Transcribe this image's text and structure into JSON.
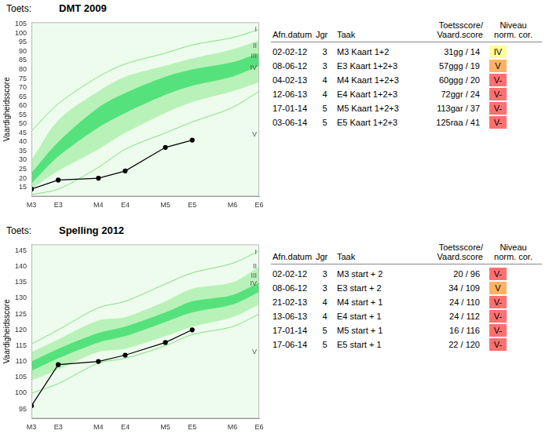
{
  "chart_data": [
    {
      "type": "line",
      "heading": "Toets:",
      "title": "DMT 2009",
      "y_label": "Vaardigheidsscore",
      "x": [
        3,
        3.4,
        4,
        4.4,
        5,
        5.4,
        6,
        6.4
      ],
      "xlim": [
        3,
        6.4
      ],
      "xticks": [
        {
          "value": 3,
          "label": "M3"
        },
        {
          "value": 3.4,
          "label": "E3"
        },
        {
          "value": 4,
          "label": "M4"
        },
        {
          "value": 4.4,
          "label": "E4"
        },
        {
          "value": 5,
          "label": "M5"
        },
        {
          "value": 5.4,
          "label": "E5"
        },
        {
          "value": 6,
          "label": "M6"
        },
        {
          "value": 6.4,
          "label": "E6"
        }
      ],
      "ylim": [
        10,
        106
      ],
      "yticks": [
        15,
        20,
        25,
        30,
        35,
        40,
        45,
        50,
        55,
        60,
        65,
        70,
        75,
        80,
        85,
        90,
        95,
        100,
        105
      ],
      "grid": false,
      "series": [
        {
          "type": "band",
          "color": "#b8f2b8",
          "values": [
            [
              14,
              30
            ],
            [
              24,
              52
            ],
            [
              36,
              68
            ],
            [
              45,
              76
            ],
            [
              56,
              82
            ],
            [
              62,
              86
            ],
            [
              68,
              91
            ],
            [
              73,
              96
            ]
          ]
        },
        {
          "type": "band",
          "color": "#55e27c",
          "values": [
            [
              17,
              23
            ],
            [
              32,
              40
            ],
            [
              48,
              59
            ],
            [
              56,
              67
            ],
            [
              66,
              76
            ],
            [
              71,
              80
            ],
            [
              76,
              84
            ],
            [
              82,
              89
            ]
          ]
        },
        {
          "type": "line",
          "color": "#80e080",
          "values": [
            46,
            61,
            76,
            83,
            89,
            93.5,
            97.5,
            102
          ]
        },
        {
          "type": "line",
          "color": "#80e080",
          "values": [
            11,
            14,
            26,
            36,
            45,
            51,
            59,
            68
          ]
        },
        {
          "type": "line",
          "color": "#000000",
          "marker": "circle",
          "x": [
            3,
            3.4,
            4,
            4.4,
            5,
            5.4
          ],
          "values": [
            14,
            19,
            20,
            24,
            37,
            41
          ]
        }
      ],
      "annotations": [
        {
          "text": "I",
          "x": 6.4,
          "y": 102
        },
        {
          "text": "II",
          "x": 6.4,
          "y": 93
        },
        {
          "text": "III",
          "x": 6.4,
          "y": 87.5
        },
        {
          "text": "IV",
          "x": 6.4,
          "y": 81
        },
        {
          "text": "V",
          "x": 6.4,
          "y": 44
        }
      ],
      "table": {
        "header": [
          "Afn.datum",
          "Jgr",
          "Taak",
          [
            "Toetsscore/",
            "Vaard.score"
          ],
          [
            "Niveau",
            "norm. cor."
          ]
        ],
        "rows": [
          [
            "02-02-12",
            3,
            "M3 Kaart 1+2",
            "31gg / 14",
            {
              "text": "IV",
              "color": "#ffff99"
            }
          ],
          [
            "08-06-12",
            3,
            "E3 Kaart 1+2+3",
            "57ggg / 19",
            {
              "text": "V",
              "color": "#ffb266"
            }
          ],
          [
            "04-02-13",
            4,
            "M4 Kaart 1+2+3",
            "60ggg / 20",
            {
              "text": "V-",
              "color": "#ff7070"
            }
          ],
          [
            "12-06-13",
            4,
            "E4 Kaart 1+2+3",
            "72ggr / 24",
            {
              "text": "V-",
              "color": "#ff7070"
            }
          ],
          [
            "17-01-14",
            5,
            "M5 Kaart 1+2+3",
            "113gar / 37",
            {
              "text": "V-",
              "color": "#ff7070"
            }
          ],
          [
            "03-06-14",
            5,
            "E5 Kaart 1+2+3",
            "125raa / 41",
            {
              "text": "V-",
              "color": "#ff7070"
            }
          ]
        ]
      }
    },
    {
      "type": "line",
      "heading": "Toets:",
      "title": "Spelling 2012",
      "y_label": "Vaardigheidsscore",
      "x": [
        3,
        3.4,
        4,
        4.4,
        5,
        5.4,
        6,
        6.4
      ],
      "xlim": [
        3,
        6.4
      ],
      "xticks": [
        {
          "value": 3,
          "label": "M3"
        },
        {
          "value": 3.4,
          "label": "E3"
        },
        {
          "value": 4,
          "label": "M4"
        },
        {
          "value": 4.4,
          "label": "E4"
        },
        {
          "value": 5,
          "label": "M5"
        },
        {
          "value": 5.4,
          "label": "E5"
        },
        {
          "value": 6,
          "label": "M6"
        },
        {
          "value": 6.4,
          "label": "E6"
        }
      ],
      "ylim": [
        92,
        147
      ],
      "yticks": [
        95,
        100,
        105,
        110,
        115,
        120,
        125,
        130,
        135,
        140,
        145
      ],
      "grid": false,
      "series": [
        {
          "type": "band",
          "color": "#b8f2b8",
          "values": [
            [
              104,
              113
            ],
            [
              107.5,
              117
            ],
            [
              113,
              123
            ],
            [
              114,
              124
            ],
            [
              118,
              129
            ],
            [
              121,
              133
            ],
            [
              124,
              135
            ],
            [
              128,
              140
            ]
          ]
        },
        {
          "type": "band",
          "color": "#55e27c",
          "values": [
            [
              107,
              110
            ],
            [
              111,
              114
            ],
            [
              116,
              119
            ],
            [
              118,
              121
            ],
            [
              122.5,
              125.5
            ],
            [
              125.5,
              129
            ],
            [
              128,
              131
            ],
            [
              132,
              135
            ]
          ]
        },
        {
          "type": "line",
          "color": "#80e080",
          "values": [
            115.5,
            120,
            127,
            129,
            134.5,
            138,
            141,
            145
          ]
        },
        {
          "type": "line",
          "color": "#80e080",
          "values": [
            100,
            103,
            109.5,
            111,
            115,
            118.5,
            121,
            125
          ]
        },
        {
          "type": "line",
          "color": "#000000",
          "marker": "circle",
          "x": [
            3,
            3.4,
            4,
            4.4,
            5,
            5.4
          ],
          "values": [
            96,
            109,
            110,
            112,
            116,
            120
          ]
        }
      ],
      "annotations": [
        {
          "text": "I",
          "x": 6.4,
          "y": 144.5
        },
        {
          "text": "II",
          "x": 6.4,
          "y": 140
        },
        {
          "text": "III",
          "x": 6.4,
          "y": 137
        },
        {
          "text": "IV",
          "x": 6.4,
          "y": 134.5
        },
        {
          "text": "V",
          "x": 6.4,
          "y": 113
        }
      ],
      "table": {
        "header": [
          "Afn.datum",
          "Jgr",
          "Taak",
          [
            "Toetsscore/",
            "Vaard.score"
          ],
          [
            "Niveau",
            "norm. cor."
          ]
        ],
        "rows": [
          [
            "02-02-12",
            3,
            "M3 start + 2",
            "20 / 96",
            {
              "text": "V-",
              "color": "#ff7070"
            }
          ],
          [
            "08-06-12",
            3,
            "E3 start + 2",
            "34 / 109",
            {
              "text": "V",
              "color": "#ffb266"
            }
          ],
          [
            "21-02-13",
            4,
            "M4 start + 1",
            "24 / 110",
            {
              "text": "V-",
              "color": "#ff7070"
            }
          ],
          [
            "13-06-13",
            4,
            "E4 start + 1",
            "24 / 112",
            {
              "text": "V-",
              "color": "#ff7070"
            }
          ],
          [
            "17-01-14",
            5,
            "M5 start + 1",
            "16 / 116",
            {
              "text": "V-",
              "color": "#ff7070"
            }
          ],
          [
            "17-06-14",
            5,
            "E5 start + 1",
            "22 / 120",
            {
              "text": "V-",
              "color": "#ff7070"
            }
          ]
        ]
      }
    }
  ]
}
